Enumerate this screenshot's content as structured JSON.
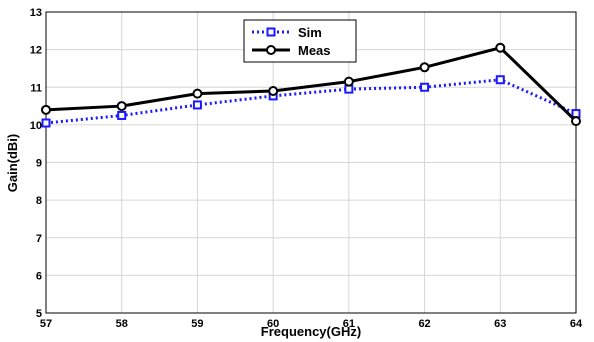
{
  "chart_data": {
    "type": "line",
    "xlabel": "Frequency(GHz)",
    "ylabel": "Gain(dBi)",
    "xlim": [
      57,
      64
    ],
    "ylim": [
      5,
      13
    ],
    "xticks": [
      "57",
      "58",
      "59",
      "60",
      "61",
      "62",
      "63",
      "64"
    ],
    "yticks": [
      "5",
      "6",
      "7",
      "8",
      "9",
      "10",
      "11",
      "12",
      "13"
    ],
    "grid": true,
    "legend": "top-center",
    "x": [
      57,
      58,
      59,
      60,
      61,
      62,
      63,
      64
    ],
    "series": [
      {
        "name": "Sim",
        "values": [
          10.05,
          10.25,
          10.53,
          10.77,
          10.95,
          11.0,
          11.2,
          10.3
        ],
        "color": "#1a1aff",
        "marker": "square",
        "line": "dotted"
      },
      {
        "name": "Meas",
        "values": [
          10.4,
          10.5,
          10.83,
          10.9,
          11.15,
          11.53,
          12.05,
          10.1
        ],
        "color": "#000000",
        "marker": "circle",
        "line": "solid"
      }
    ]
  }
}
